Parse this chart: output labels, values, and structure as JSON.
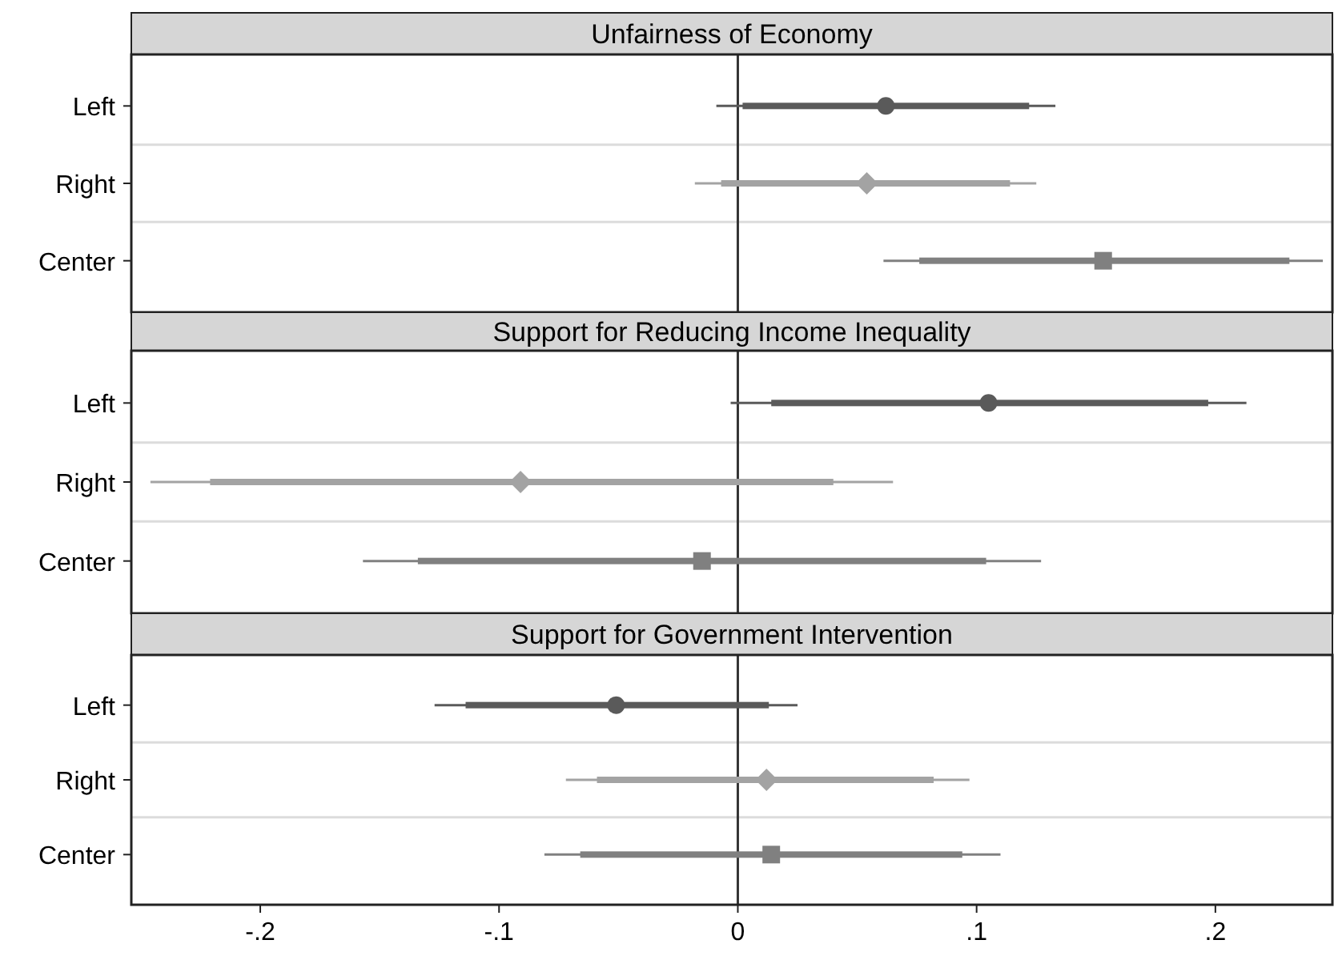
{
  "chart_data": [
    {
      "type": "scatter",
      "title": "Unfairness of Economy",
      "orientation": "horizontal",
      "categories": [
        "Left",
        "Right",
        "Center"
      ],
      "xlim": [
        -0.254,
        0.249
      ],
      "tick_labels": "y",
      "grid": "y",
      "ref_lines": [
        {
          "axis": "x",
          "value": 0,
          "color": "#333333"
        }
      ],
      "series": [
        {
          "type": "bar",
          "color": "#5a5a5a",
          "base": [
            0.002,
            null,
            null
          ],
          "values": [
            0.12,
            null,
            null
          ]
        },
        {
          "color": "#5a5a5a",
          "marker": "circle",
          "values": [
            0.062,
            null,
            null
          ],
          "errors": [
            [
              -0.009,
              0.133
            ],
            null,
            null
          ]
        },
        {
          "type": "bar",
          "color": "#a3a3a3",
          "base": [
            null,
            -0.007,
            null
          ],
          "values": [
            null,
            0.121,
            null
          ]
        },
        {
          "color": "#a3a3a3",
          "marker": "diamond",
          "values": [
            null,
            0.054,
            null
          ],
          "errors": [
            null,
            [
              -0.018,
              0.125
            ],
            null
          ]
        },
        {
          "type": "bar",
          "color": "#808080",
          "base": [
            null,
            null,
            0.076
          ],
          "values": [
            null,
            null,
            0.155
          ]
        },
        {
          "color": "#808080",
          "marker": "square",
          "values": [
            null,
            null,
            0.153
          ],
          "errors": [
            null,
            null,
            [
              0.061,
              0.245
            ]
          ]
        }
      ]
    },
    {
      "type": "scatter",
      "title": "Support for Reducing Income Inequality",
      "orientation": "horizontal",
      "categories": [
        "Left",
        "Right",
        "Center"
      ],
      "xlim": [
        -0.254,
        0.249
      ],
      "tick_labels": "y",
      "grid": "y",
      "ref_lines": [
        {
          "axis": "x",
          "value": 0,
          "color": "#333333"
        }
      ],
      "series": [
        {
          "type": "bar",
          "color": "#5a5a5a",
          "base": [
            0.014,
            null,
            null
          ],
          "values": [
            0.183,
            null,
            null
          ]
        },
        {
          "color": "#5a5a5a",
          "marker": "circle",
          "values": [
            0.105,
            null,
            null
          ],
          "errors": [
            [
              -0.003,
              0.213
            ],
            null,
            null
          ]
        },
        {
          "type": "bar",
          "color": "#a3a3a3",
          "base": [
            null,
            -0.221,
            null
          ],
          "values": [
            null,
            0.261,
            null
          ]
        },
        {
          "color": "#a3a3a3",
          "marker": "diamond",
          "values": [
            null,
            -0.091,
            null
          ],
          "errors": [
            null,
            [
              -0.246,
              0.065
            ],
            null
          ]
        },
        {
          "type": "bar",
          "color": "#808080",
          "base": [
            null,
            null,
            -0.134
          ],
          "values": [
            null,
            null,
            0.238
          ]
        },
        {
          "color": "#808080",
          "marker": "square",
          "values": [
            null,
            null,
            -0.015
          ],
          "errors": [
            null,
            null,
            [
              -0.157,
              0.127
            ]
          ]
        }
      ]
    },
    {
      "type": "scatter",
      "title": "Support for Government Intervention",
      "orientation": "horizontal",
      "categories": [
        "Left",
        "Right",
        "Center"
      ],
      "xlim": [
        -0.254,
        0.249
      ],
      "xticks": [
        {
          "value": -0.2,
          "label": "-.2"
        },
        {
          "value": -0.1,
          "label": "-.1"
        },
        0,
        {
          "value": 0.1,
          "label": ".1"
        },
        {
          "value": 0.2,
          "label": ".2"
        }
      ],
      "grid": "y",
      "ref_lines": [
        {
          "axis": "x",
          "value": 0,
          "color": "#333333"
        }
      ],
      "series": [
        {
          "type": "bar",
          "color": "#5a5a5a",
          "base": [
            -0.114,
            null,
            null
          ],
          "values": [
            0.127,
            null,
            null
          ]
        },
        {
          "color": "#5a5a5a",
          "marker": "circle",
          "values": [
            -0.051,
            null,
            null
          ],
          "errors": [
            [
              -0.127,
              0.025
            ],
            null,
            null
          ]
        },
        {
          "type": "bar",
          "color": "#a3a3a3",
          "base": [
            null,
            -0.059,
            null
          ],
          "values": [
            null,
            0.141,
            null
          ]
        },
        {
          "color": "#a3a3a3",
          "marker": "diamond",
          "values": [
            null,
            0.012,
            null
          ],
          "errors": [
            null,
            [
              -0.072,
              0.097
            ],
            null
          ]
        },
        {
          "type": "bar",
          "color": "#808080",
          "base": [
            null,
            null,
            -0.066
          ],
          "values": [
            null,
            null,
            0.16
          ]
        },
        {
          "color": "#808080",
          "marker": "square",
          "values": [
            null,
            null,
            0.014
          ],
          "errors": [
            null,
            null,
            [
              -0.081,
              0.11
            ]
          ]
        }
      ]
    }
  ]
}
